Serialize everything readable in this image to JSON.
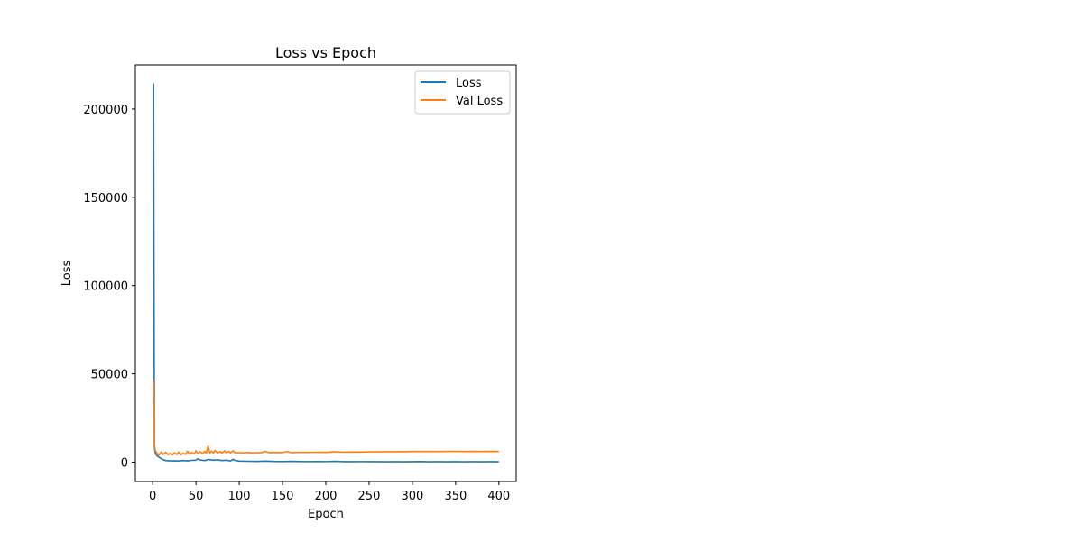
{
  "chart_data": {
    "type": "line",
    "title": "Loss vs Epoch",
    "xlabel": "Epoch",
    "ylabel": "Loss",
    "xlim": [
      -20,
      420
    ],
    "ylim": [
      -11000,
      225000
    ],
    "xticks": [
      0,
      50,
      100,
      150,
      200,
      250,
      300,
      350,
      400
    ],
    "yticks": [
      0,
      50000,
      100000,
      150000,
      200000
    ],
    "grid": false,
    "legend_position": "top-right",
    "series": [
      {
        "name": "Loss",
        "color": "#1f77b4",
        "points": [
          [
            1,
            214500
          ],
          [
            2,
            8500
          ],
          [
            3,
            5000
          ],
          [
            5,
            3500
          ],
          [
            8,
            2600
          ],
          [
            10,
            1800
          ],
          [
            15,
            900
          ],
          [
            20,
            700
          ],
          [
            25,
            800
          ],
          [
            30,
            650
          ],
          [
            35,
            900
          ],
          [
            40,
            700
          ],
          [
            45,
            1000
          ],
          [
            50,
            1100
          ],
          [
            52,
            1900
          ],
          [
            55,
            1200
          ],
          [
            60,
            900
          ],
          [
            65,
            1500
          ],
          [
            70,
            1100
          ],
          [
            75,
            1300
          ],
          [
            80,
            900
          ],
          [
            85,
            1100
          ],
          [
            90,
            700
          ],
          [
            93,
            1600
          ],
          [
            95,
            1000
          ],
          [
            100,
            600
          ],
          [
            110,
            500
          ],
          [
            120,
            400
          ],
          [
            130,
            600
          ],
          [
            140,
            400
          ],
          [
            150,
            350
          ],
          [
            160,
            450
          ],
          [
            170,
            350
          ],
          [
            180,
            300
          ],
          [
            190,
            350
          ],
          [
            200,
            300
          ],
          [
            210,
            450
          ],
          [
            220,
            300
          ],
          [
            230,
            250
          ],
          [
            240,
            300
          ],
          [
            250,
            250
          ],
          [
            260,
            250
          ],
          [
            270,
            200
          ],
          [
            280,
            250
          ],
          [
            290,
            200
          ],
          [
            300,
            250
          ],
          [
            310,
            350
          ],
          [
            320,
            200
          ],
          [
            330,
            250
          ],
          [
            340,
            200
          ],
          [
            350,
            250
          ],
          [
            360,
            200
          ],
          [
            370,
            250
          ],
          [
            380,
            200
          ],
          [
            390,
            250
          ],
          [
            400,
            200
          ]
        ]
      },
      {
        "name": "Val Loss",
        "color": "#ff7f0e",
        "points": [
          [
            1,
            46000
          ],
          [
            2,
            10000
          ],
          [
            3,
            6500
          ],
          [
            5,
            5200
          ],
          [
            7,
            3800
          ],
          [
            10,
            5800
          ],
          [
            12,
            4300
          ],
          [
            15,
            5600
          ],
          [
            18,
            4200
          ],
          [
            20,
            5000
          ],
          [
            23,
            4100
          ],
          [
            25,
            5300
          ],
          [
            28,
            4300
          ],
          [
            30,
            5700
          ],
          [
            33,
            4200
          ],
          [
            35,
            5100
          ],
          [
            38,
            4400
          ],
          [
            40,
            6200
          ],
          [
            43,
            4500
          ],
          [
            45,
            5400
          ],
          [
            48,
            4600
          ],
          [
            50,
            6500
          ],
          [
            52,
            4800
          ],
          [
            55,
            5900
          ],
          [
            58,
            4700
          ],
          [
            60,
            6100
          ],
          [
            62,
            5000
          ],
          [
            64,
            9000
          ],
          [
            66,
            5200
          ],
          [
            68,
            6300
          ],
          [
            70,
            5100
          ],
          [
            72,
            6600
          ],
          [
            75,
            5200
          ],
          [
            78,
            6000
          ],
          [
            80,
            5100
          ],
          [
            83,
            6400
          ],
          [
            85,
            5300
          ],
          [
            88,
            6100
          ],
          [
            90,
            5200
          ],
          [
            93,
            6500
          ],
          [
            95,
            5300
          ],
          [
            100,
            5400
          ],
          [
            105,
            5200
          ],
          [
            110,
            5500
          ],
          [
            115,
            5200
          ],
          [
            120,
            5400
          ],
          [
            125,
            5300
          ],
          [
            130,
            6100
          ],
          [
            135,
            5300
          ],
          [
            140,
            5500
          ],
          [
            150,
            5400
          ],
          [
            155,
            6000
          ],
          [
            160,
            5400
          ],
          [
            170,
            5500
          ],
          [
            180,
            5500
          ],
          [
            190,
            5600
          ],
          [
            200,
            5500
          ],
          [
            210,
            5900
          ],
          [
            220,
            5600
          ],
          [
            230,
            5700
          ],
          [
            240,
            5700
          ],
          [
            250,
            5800
          ],
          [
            260,
            5800
          ],
          [
            270,
            5900
          ],
          [
            280,
            5900
          ],
          [
            290,
            5900
          ],
          [
            300,
            6000
          ],
          [
            310,
            6000
          ],
          [
            320,
            6000
          ],
          [
            330,
            6000
          ],
          [
            340,
            6100
          ],
          [
            350,
            6100
          ],
          [
            360,
            6000
          ],
          [
            370,
            6100
          ],
          [
            380,
            6000
          ],
          [
            390,
            6100
          ],
          [
            400,
            6000
          ]
        ]
      }
    ]
  }
}
